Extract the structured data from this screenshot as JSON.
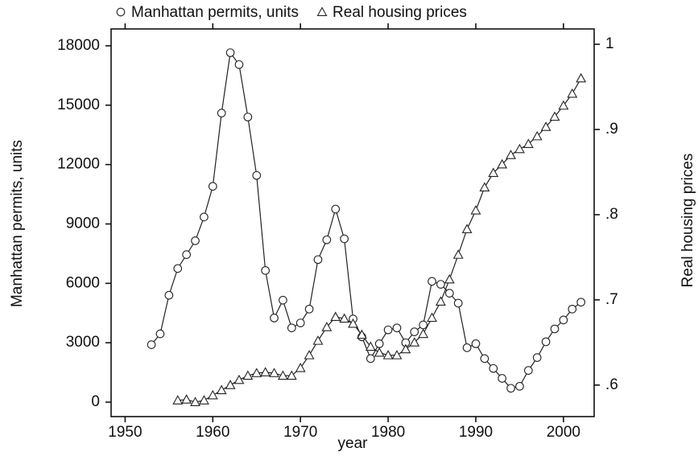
{
  "chart_data": {
    "type": "line",
    "x_label": "year",
    "y_label": "Manhattan permits, units",
    "y2_label": "Real housing prices",
    "x": [
      1953,
      1954,
      1955,
      1956,
      1957,
      1958,
      1959,
      1960,
      1961,
      1962,
      1963,
      1964,
      1965,
      1966,
      1967,
      1968,
      1969,
      1970,
      1971,
      1972,
      1973,
      1974,
      1975,
      1976,
      1977,
      1978,
      1979,
      1980,
      1981,
      1982,
      1983,
      1984,
      1985,
      1986,
      1987,
      1988,
      1989,
      1990,
      1991,
      1992,
      1993,
      1994,
      1995,
      1996,
      1997,
      1998,
      1999,
      2000,
      2001,
      2002
    ],
    "series": [
      {
        "name": "Manhattan permits, units",
        "color": "#222222",
        "marker": "circle",
        "values": [
          2900,
          3450,
          5400,
          6750,
          7450,
          8150,
          9350,
          10900,
          14600,
          17650,
          17050,
          14400,
          11450,
          6650,
          4250,
          5150,
          3750,
          4000,
          4700,
          7200,
          8200,
          9750,
          8250,
          4200,
          3300,
          2200,
          2950,
          3650,
          3750,
          3000,
          3550,
          3900,
          6100,
          5950,
          5500,
          5000,
          2750,
          2950,
          2200,
          1700,
          1200,
          700,
          800,
          1600,
          2250,
          3050,
          3700,
          4150,
          4700,
          5050
        ]
      },
      {
        "name": "Real housing prices",
        "color": "#222222",
        "marker": "triangle",
        "axis": "y2",
        "values": [
          null,
          null,
          null,
          0.582,
          0.583,
          0.58,
          0.582,
          0.588,
          0.594,
          0.6,
          0.606,
          0.611,
          0.614,
          0.615,
          0.614,
          0.611,
          0.611,
          0.62,
          0.635,
          0.652,
          0.668,
          0.68,
          0.678,
          0.672,
          0.659,
          0.645,
          0.638,
          0.635,
          0.635,
          0.642,
          0.65,
          0.66,
          0.679,
          0.698,
          0.724,
          0.753,
          0.783,
          0.805,
          0.832,
          0.849,
          0.859,
          0.87,
          0.877,
          0.883,
          0.892,
          0.903,
          0.915,
          0.928,
          0.942,
          0.96
        ]
      }
    ],
    "xlim": [
      1948.4,
      2003.5
    ],
    "xticks": [
      1950,
      1960,
      1970,
      1980,
      1990,
      2000
    ],
    "ylim": [
      -730,
      18850
    ],
    "yticks": [
      0,
      3000,
      6000,
      9000,
      12000,
      15000,
      18000
    ],
    "y2lim": [
      0.563,
      1.018
    ],
    "y2ticks": [
      {
        "value": 0.6,
        "label": ".6"
      },
      {
        "value": 0.7,
        "label": ".7"
      },
      {
        "value": 0.8,
        "label": ".8"
      },
      {
        "value": 0.9,
        "label": ".9"
      },
      1
    ],
    "legend": "top"
  }
}
